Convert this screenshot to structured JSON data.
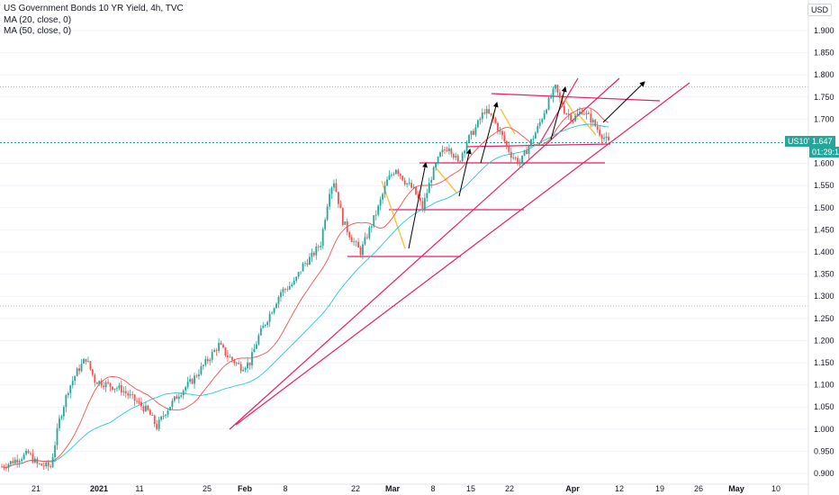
{
  "legend": {
    "title": "US Government Bonds 10 YR Yield, 4h, TVC",
    "ma20": "MA (20, close, 0)",
    "ma50": "MA (50, close, 0)"
  },
  "price_axis": {
    "currency": "USD",
    "symbol_tag": "US10Y",
    "last_price": "1.647",
    "countdown": "01:29:17"
  },
  "colors": {
    "up": "#26a69a",
    "down": "#ef5350",
    "ma20": "#ef5350",
    "ma50": "#26c6da",
    "trendline": "#e91e63",
    "swing": "#f6c342",
    "arrow": "#000000",
    "tag": "#26a69a"
  },
  "chart_data": {
    "type": "candlestick",
    "y_range": [
      0.895,
      1.98
    ],
    "y_ticks": [
      "1.900",
      "1.850",
      "1.800",
      "1.750",
      "1.700",
      "1.650",
      "1.600",
      "1.550",
      "1.500",
      "1.450",
      "1.400",
      "1.350",
      "1.300",
      "1.250",
      "1.200",
      "1.150",
      "1.100",
      "1.050",
      "1.000",
      "0.950",
      "0.900"
    ],
    "x_ticks": [
      "21",
      "2021",
      "11",
      "25",
      "Feb",
      "8",
      "22",
      "Mar",
      "8",
      "15",
      "22",
      "Apr",
      "12",
      "19",
      "26",
      "May",
      "10"
    ],
    "price_path": [
      [
        0,
        0.915
      ],
      [
        6,
        0.93
      ],
      [
        12,
        0.945
      ],
      [
        16,
        0.92
      ],
      [
        22,
        0.915
      ],
      [
        26,
        1.02
      ],
      [
        30,
        1.09
      ],
      [
        34,
        1.13
      ],
      [
        38,
        1.16
      ],
      [
        42,
        1.11
      ],
      [
        48,
        1.1
      ],
      [
        54,
        1.09
      ],
      [
        60,
        1.065
      ],
      [
        66,
        1.04
      ],
      [
        70,
        1.005
      ],
      [
        74,
        1.04
      ],
      [
        80,
        1.08
      ],
      [
        86,
        1.11
      ],
      [
        92,
        1.15
      ],
      [
        98,
        1.19
      ],
      [
        102,
        1.165
      ],
      [
        108,
        1.14
      ],
      [
        112,
        1.15
      ],
      [
        116,
        1.21
      ],
      [
        122,
        1.27
      ],
      [
        126,
        1.31
      ],
      [
        132,
        1.33
      ],
      [
        136,
        1.37
      ],
      [
        140,
        1.39
      ],
      [
        144,
        1.42
      ],
      [
        148,
        1.54
      ],
      [
        150,
        1.56
      ],
      [
        154,
        1.47
      ],
      [
        158,
        1.43
      ],
      [
        162,
        1.4
      ],
      [
        166,
        1.45
      ],
      [
        170,
        1.5
      ],
      [
        174,
        1.56
      ],
      [
        178,
        1.59
      ],
      [
        182,
        1.56
      ],
      [
        186,
        1.54
      ],
      [
        190,
        1.5
      ],
      [
        194,
        1.57
      ],
      [
        198,
        1.62
      ],
      [
        202,
        1.64
      ],
      [
        206,
        1.6
      ],
      [
        210,
        1.65
      ],
      [
        214,
        1.68
      ],
      [
        218,
        1.72
      ],
      [
        222,
        1.7
      ],
      [
        226,
        1.66
      ],
      [
        230,
        1.62
      ],
      [
        234,
        1.6
      ],
      [
        238,
        1.64
      ],
      [
        242,
        1.68
      ],
      [
        246,
        1.73
      ],
      [
        250,
        1.77
      ],
      [
        254,
        1.72
      ],
      [
        258,
        1.7
      ],
      [
        262,
        1.72
      ],
      [
        266,
        1.7
      ],
      [
        270,
        1.67
      ],
      [
        274,
        1.647
      ]
    ]
  }
}
